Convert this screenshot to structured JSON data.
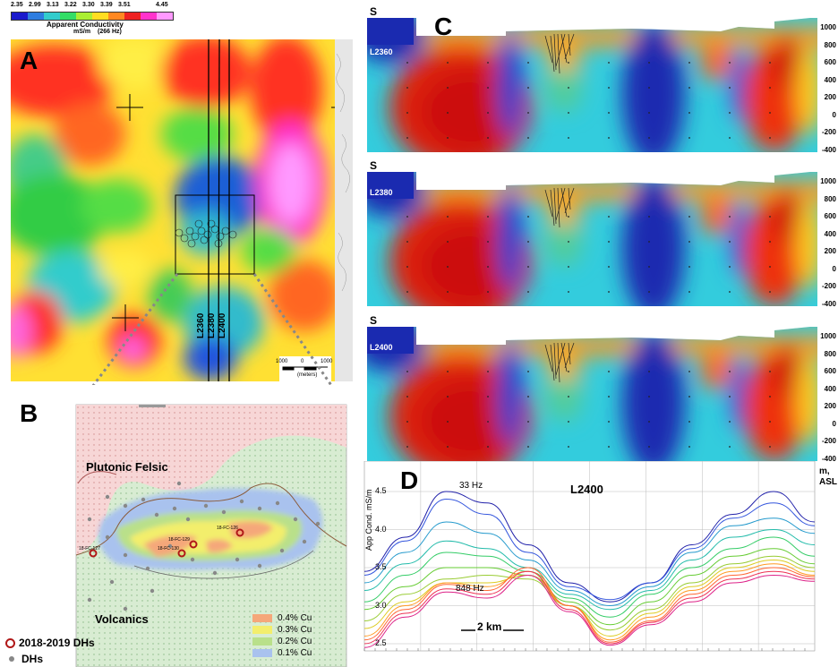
{
  "colorbar": {
    "ticks": [
      "2.35",
      "2.99",
      "3.13",
      "3.22",
      "3.30",
      "3.39",
      "3.51",
      "4.45"
    ],
    "title": "Apparent Conductivity",
    "units": "mS/m",
    "freq": "(266 Hz)",
    "colors": [
      "#1a1acc",
      "#2e7de0",
      "#33cccc",
      "#33dd66",
      "#aaee33",
      "#ffdd22",
      "#ff8822",
      "#ee2222",
      "#ff33cc",
      "#ff99ff"
    ]
  },
  "panel_a": {
    "label": "A",
    "lines": [
      "L2360",
      "L2380",
      "L2400"
    ],
    "scale": {
      "left": "1000",
      "mid": "0",
      "right": "1000",
      "units": "(meters)"
    }
  },
  "panel_b": {
    "label": "B",
    "plutonic": "Plutonic Felsic",
    "volcanics": "Volcanics",
    "dh_labels": [
      "18-FC-127",
      "18-FC-129",
      "18-FC-130",
      "18-FC-126"
    ],
    "legend": [
      {
        "label": "0.4% Cu",
        "color": "#f5a77a"
      },
      {
        "label": "0.3% Cu",
        "color": "#f3ee6c"
      },
      {
        "label": "0.2% Cu",
        "color": "#b9e08a"
      },
      {
        "label": "0.1% Cu",
        "color": "#a9c2ee"
      }
    ],
    "legend2": [
      "2018-2019 DHs",
      "DHs"
    ]
  },
  "panel_c": {
    "label": "C",
    "sections": [
      {
        "line": "L2360",
        "south": "S"
      },
      {
        "line": "L2380",
        "south": "S"
      },
      {
        "line": "L2400",
        "south": "S"
      }
    ],
    "elevations": [
      "1000",
      "800",
      "600",
      "400",
      "200",
      "0",
      "-200",
      "-400"
    ]
  },
  "panel_d": {
    "label": "D",
    "title": "L2400",
    "ylabel": "App Cond. mS/m",
    "right_label_1": "m,",
    "right_label_2": "ASL",
    "label_high": "33 Hz",
    "label_low": "848 Hz",
    "scale_label": "2 km",
    "yticks": [
      "4.5",
      "4.0",
      "3.5",
      "3.0",
      "2.5"
    ]
  }
}
